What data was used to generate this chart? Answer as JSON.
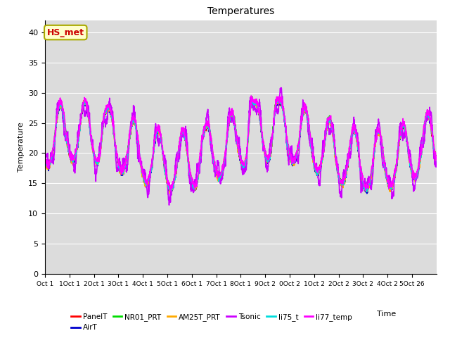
{
  "title": "Temperatures",
  "xlabel": "Time",
  "ylabel": "Temperature",
  "ylim": [
    0,
    42
  ],
  "yticks": [
    0,
    5,
    10,
    15,
    20,
    25,
    30,
    35,
    40
  ],
  "annotation_text": "HS_met",
  "series_names": [
    "PanelT",
    "AirT",
    "NR01_PRT",
    "AM25T_PRT",
    "Tsonic",
    "li75_t",
    "li77_temp"
  ],
  "series_colors": [
    "#ff0000",
    "#0000cd",
    "#00dd00",
    "#ffaa00",
    "#cc00ff",
    "#00dddd",
    "#ff00ff"
  ],
  "series_lw": [
    1.0,
    1.0,
    1.0,
    1.0,
    1.2,
    1.2,
    1.2
  ],
  "bg_color": "#dcdcdc",
  "fig_bg": "#ffffff",
  "n_days": 16,
  "points_per_day": 144,
  "xtick_labels": [
    "Oct 1",
    "1Oct 1",
    "2Oct 1",
    "3Oct 1",
    "4Oct 1",
    "5Oct 1",
    "6Oct 1",
    "7Oct 1",
    "8Oct 1",
    "9Oct 2",
    "0Oct 2",
    "1Oct 2",
    "2Oct 2",
    "3Oct 2",
    "4Oct 2",
    "5Oct 26"
  ],
  "font_size": 8,
  "title_fontsize": 10,
  "annotation_color": "#cc0000",
  "annotation_bg": "#ffffcc",
  "annotation_edge": "#aaaa00"
}
